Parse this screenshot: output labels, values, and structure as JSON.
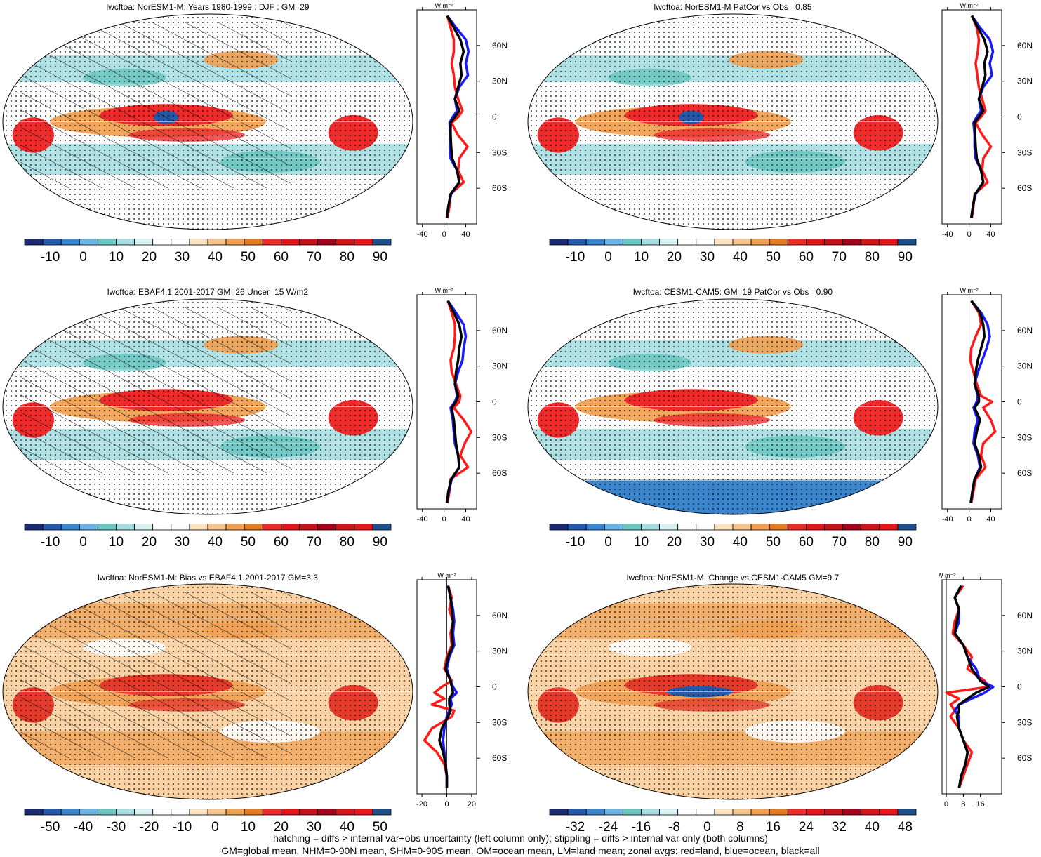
{
  "colors": {
    "land": "#ff1a1a",
    "ocean": "#1a1aff",
    "all": "#000000",
    "palette": [
      "#1c2a72",
      "#2458a8",
      "#3b85cc",
      "#6ab3e3",
      "#6cc6c2",
      "#a6dde0",
      "#d8f2f4",
      "#ffffff",
      "#ffffff",
      "#fbe3c0",
      "#f6c48e",
      "#f0a052",
      "#e47b22",
      "#ee2a2a",
      "#e5141a",
      "#c8101a",
      "#a4001c",
      "#d4141a",
      "#e8141a",
      "#1f4f8a"
    ]
  },
  "panels": [
    {
      "title": "lwcftoa: NorESM1-M: Years 1980-1999 : DJF : GM=29",
      "colorbar_labels": [
        "-10",
        "0",
        "10",
        "20",
        "30",
        "40",
        "50",
        "60",
        "70",
        "80",
        "90"
      ],
      "zonal_axis": {
        "unit": "W m⁻²",
        "xlim": [
          -50,
          60
        ],
        "xticks": [
          "-40",
          "0",
          "40"
        ],
        "xtick_values": [
          -40,
          0,
          40
        ],
        "lat_labels": [
          "60N",
          "30N",
          "0",
          "30S",
          "60S"
        ]
      },
      "chart_data": {
        "type": "line",
        "xlabel": "W m-2",
        "lat": [
          85,
          75,
          65,
          55,
          45,
          35,
          25,
          15,
          5,
          0,
          -5,
          -15,
          -25,
          -35,
          -45,
          -55,
          -65,
          -75,
          -85
        ],
        "series": [
          {
            "name": "land",
            "values": [
              6,
              12,
              18,
              18,
              14,
              18,
              20,
              26,
              34,
              26,
              14,
              25,
              43,
              28,
              26,
              36,
              12,
              10,
              6
            ]
          },
          {
            "name": "ocean",
            "values": [
              6,
              22,
              40,
              45,
              40,
              44,
              28,
              20,
              24,
              16,
              10,
              12,
              11,
              12,
              24,
              28,
              13,
              8,
              5
            ]
          },
          {
            "name": "all",
            "values": [
              6,
              18,
              30,
              36,
              30,
              32,
              26,
              20,
              28,
              20,
              12,
              12,
              13,
              15,
              24,
              28,
              12,
              8,
              5
            ]
          }
        ]
      }
    },
    {
      "title": "lwcftoa: NorESM1-M PatCor vs Obs =0.85",
      "colorbar_labels": [
        "-10",
        "0",
        "10",
        "20",
        "30",
        "40",
        "50",
        "60",
        "70",
        "80",
        "90"
      ],
      "zonal_axis": {
        "unit": "W m⁻²",
        "xlim": [
          -50,
          60
        ],
        "xticks": [
          "-40",
          "0",
          "40"
        ],
        "xtick_values": [
          -40,
          0,
          40
        ],
        "lat_labels": [
          "60N",
          "30N",
          "0",
          "30S",
          "60S"
        ]
      },
      "chart_data": {
        "type": "line",
        "xlabel": "W m-2",
        "lat": [
          85,
          75,
          65,
          55,
          45,
          35,
          25,
          15,
          5,
          0,
          -5,
          -15,
          -25,
          -35,
          -45,
          -55,
          -65,
          -75,
          -85
        ],
        "series": [
          {
            "name": "land",
            "values": [
              5,
              14,
              18,
              16,
              12,
              15,
              18,
              24,
              30,
              22,
              12,
              24,
              40,
              26,
              24,
              34,
              10,
              8,
              5
            ]
          },
          {
            "name": "ocean",
            "values": [
              5,
              20,
              38,
              44,
              38,
              42,
              26,
              18,
              22,
              14,
              8,
              10,
              10,
              12,
              22,
              26,
              12,
              7,
              4
            ]
          },
          {
            "name": "all",
            "values": [
              5,
              16,
              28,
              34,
              28,
              30,
              24,
              18,
              26,
              18,
              10,
              11,
              12,
              14,
              22,
              26,
              11,
              7,
              4
            ]
          }
        ]
      }
    },
    {
      "title": "lwcftoa: EBAF4.1 2001-2017 GM=26 Uncer=15 W/m2",
      "colorbar_labels": [
        "-10",
        "0",
        "10",
        "20",
        "30",
        "40",
        "50",
        "60",
        "70",
        "80",
        "90"
      ],
      "zonal_axis": {
        "unit": "W m⁻²",
        "xlim": [
          -50,
          60
        ],
        "xticks": [
          "-40",
          "0",
          "40"
        ],
        "xtick_values": [
          -40,
          0,
          40
        ],
        "lat_labels": [
          "60N",
          "30N",
          "0",
          "30S",
          "60S"
        ]
      },
      "chart_data": {
        "type": "line",
        "xlabel": "W m-2",
        "lat": [
          85,
          75,
          65,
          55,
          45,
          35,
          25,
          15,
          5,
          0,
          -5,
          -15,
          -25,
          -35,
          -45,
          -55,
          -65,
          -75,
          -85
        ],
        "series": [
          {
            "name": "land",
            "values": [
              7,
              14,
              20,
              20,
              18,
              12,
              14,
              22,
              30,
              28,
              18,
              36,
              50,
              38,
              30,
              44,
              12,
              10,
              6
            ]
          },
          {
            "name": "ocean",
            "values": [
              7,
              22,
              36,
              40,
              36,
              34,
              26,
              20,
              24,
              20,
              12,
              16,
              18,
              20,
              26,
              28,
              14,
              9,
              5
            ]
          },
          {
            "name": "all",
            "values": [
              7,
              18,
              28,
              32,
              28,
              26,
              22,
              20,
              26,
              22,
              14,
              18,
              20,
              22,
              26,
              28,
              13,
              8,
              5
            ]
          }
        ]
      }
    },
    {
      "title": "lwcftoa: CESM1-CAM5: GM=19 PatCor vs Obs =0.90",
      "colorbar_labels": [
        "-10",
        "0",
        "10",
        "20",
        "30",
        "40",
        "50",
        "60",
        "70",
        "80",
        "90"
      ],
      "zonal_axis": {
        "unit": "W m⁻²",
        "xlim": [
          -50,
          60
        ],
        "xticks": [
          "-40",
          "0",
          "40"
        ],
        "xtick_values": [
          -40,
          0,
          40
        ],
        "lat_labels": [
          "60N",
          "30N",
          "0",
          "30S",
          "60S"
        ]
      },
      "chart_data": {
        "type": "line",
        "xlabel": "W m-2",
        "lat": [
          85,
          75,
          65,
          55,
          45,
          35,
          25,
          15,
          5,
          0,
          -5,
          -15,
          -25,
          -35,
          -45,
          -55,
          -65,
          -75,
          -85
        ],
        "series": [
          {
            "name": "land",
            "values": [
              4,
              18,
              22,
              12,
              4,
              2,
              8,
              14,
              22,
              42,
              26,
              40,
              48,
              26,
              22,
              30,
              12,
              8,
              4
            ]
          },
          {
            "name": "ocean",
            "values": [
              4,
              22,
              34,
              38,
              32,
              24,
              16,
              10,
              16,
              14,
              8,
              16,
              10,
              8,
              16,
              20,
              10,
              6,
              3
            ]
          },
          {
            "name": "all",
            "values": [
              4,
              20,
              26,
              28,
              22,
              16,
              12,
              10,
              18,
              18,
              10,
              20,
              14,
              10,
              18,
              22,
              10,
              6,
              3
            ]
          }
        ]
      }
    },
    {
      "title": "lwcftoa: NorESM1-M: Bias vs EBAF4.1 2001-2017 GM=3.3",
      "colorbar_labels": [
        "-50",
        "-40",
        "-30",
        "-20",
        "-10",
        "0",
        "10",
        "20",
        "30",
        "40",
        "50"
      ],
      "zonal_axis": {
        "unit": "W m⁻²",
        "xlim": [
          -24,
          24
        ],
        "xticks": [
          "-20",
          "0",
          "20"
        ],
        "xtick_values": [
          -20,
          0,
          20
        ],
        "lat_labels": [
          "60N",
          "30N",
          "0",
          "30S",
          "60S"
        ]
      },
      "chart_data": {
        "type": "line",
        "xlabel": "W m-2",
        "lat": [
          85,
          75,
          65,
          55,
          45,
          35,
          25,
          15,
          5,
          0,
          -5,
          -10,
          -15,
          -20,
          -25,
          -35,
          -45,
          -55,
          -65,
          -75,
          -85
        ],
        "series": [
          {
            "name": "land",
            "values": [
              1,
              4,
              2,
              5,
              3,
              4,
              0,
              -2,
              4,
              -4,
              -10,
              -2,
              -12,
              6,
              4,
              -12,
              -18,
              -8,
              -2,
              0,
              0
            ]
          },
          {
            "name": "ocean",
            "values": [
              1,
              3,
              5,
              6,
              5,
              6,
              2,
              0,
              3,
              5,
              8,
              3,
              4,
              2,
              0,
              -2,
              -3,
              -2,
              -1,
              0,
              0
            ]
          },
          {
            "name": "all",
            "values": [
              1,
              3,
              4,
              5,
              4,
              5,
              1,
              -1,
              3,
              4,
              5,
              2,
              2,
              3,
              1,
              -4,
              -6,
              -3,
              -1,
              0,
              0
            ]
          }
        ]
      }
    },
    {
      "title": "lwcftoa: NorESM1-M: Change vs CESM1-CAM5 GM=9.7",
      "colorbar_labels": [
        "-32",
        "-24",
        "-16",
        "-8",
        "0",
        "8",
        "16",
        "24",
        "32",
        "40",
        "48"
      ],
      "zonal_axis": {
        "unit": "W m⁻²",
        "xlim": [
          -2,
          26
        ],
        "xticks": [
          "0",
          "8",
          "16"
        ],
        "xtick_values": [
          0,
          8,
          16
        ],
        "lat_labels": [
          "60N",
          "30N",
          "0",
          "30S",
          "60S"
        ]
      },
      "chart_data": {
        "type": "line",
        "xlabel": "W m-2",
        "lat": [
          85,
          75,
          65,
          55,
          45,
          35,
          25,
          15,
          5,
          0,
          -5,
          -10,
          -15,
          -20,
          -25,
          -35,
          -45,
          -55,
          -65,
          -75,
          -85
        ],
        "series": [
          {
            "name": "land",
            "values": [
              8,
              4,
              6,
              4,
              3,
              8,
              12,
              10,
              18,
              20,
              0,
              6,
              2,
              4,
              2,
              6,
              8,
              12,
              10,
              8,
              6
            ]
          },
          {
            "name": "ocean",
            "values": [
              7,
              4,
              6,
              6,
              4,
              8,
              10,
              14,
              16,
              22,
              18,
              12,
              6,
              4,
              6,
              6,
              8,
              10,
              9,
              7,
              6
            ]
          },
          {
            "name": "all",
            "values": [
              7,
              4,
              6,
              5,
              4,
              8,
              10,
              12,
              16,
              20,
              14,
              10,
              6,
              6,
              5,
              6,
              8,
              10,
              9,
              7,
              6
            ]
          }
        ]
      }
    }
  ],
  "footer": {
    "line1": "hatching = diffs > internal var+obs uncertainty (left column only); stippling = diffs > internal var only (both columns)",
    "line2": "GM=global mean, NHM=0-90N mean, SHM=0-90S mean, OM=ocean mean, LM=land mean; zonal avgs: red=land, blue=ocean, black=all"
  }
}
